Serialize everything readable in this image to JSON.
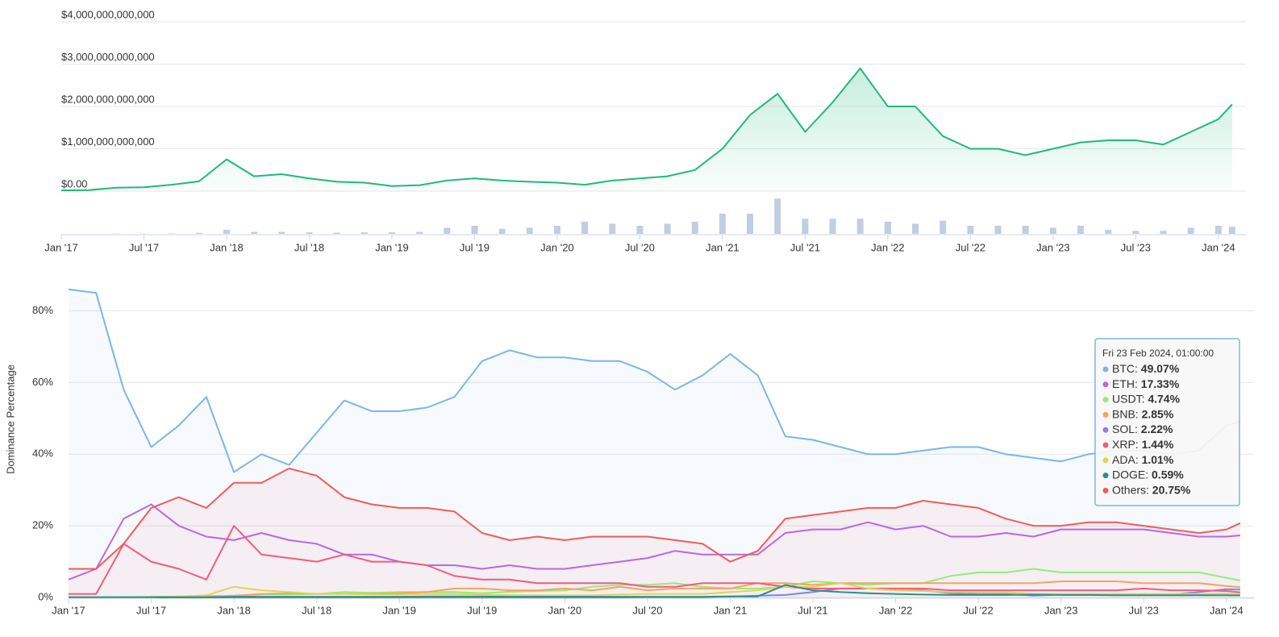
{
  "chart_data": [
    {
      "type": "line",
      "x": [
        "2017-01",
        "2017-03",
        "2017-05",
        "2017-07",
        "2017-09",
        "2017-11",
        "2018-01",
        "2018-03",
        "2018-05",
        "2018-07",
        "2018-09",
        "2018-11",
        "2019-01",
        "2019-03",
        "2019-05",
        "2019-07",
        "2019-09",
        "2019-11",
        "2020-01",
        "2020-03",
        "2020-05",
        "2020-07",
        "2020-09",
        "2020-11",
        "2021-01",
        "2021-03",
        "2021-05",
        "2021-07",
        "2021-09",
        "2021-11",
        "2022-01",
        "2022-03",
        "2022-05",
        "2022-07",
        "2022-09",
        "2022-11",
        "2023-01",
        "2023-03",
        "2023-05",
        "2023-07",
        "2023-09",
        "2023-11",
        "2024-01",
        "2024-02"
      ],
      "xlim": [
        "2017-01",
        "2024-03"
      ],
      "xticks": [
        {
          "value": "2017-01",
          "label": "Jan '17"
        },
        {
          "value": "2017-07",
          "label": "Jul '17"
        },
        {
          "value": "2018-01",
          "label": "Jan '18"
        },
        {
          "value": "2018-07",
          "label": "Jul '18"
        },
        {
          "value": "2019-01",
          "label": "Jan '19"
        },
        {
          "value": "2019-07",
          "label": "Jul '19"
        },
        {
          "value": "2020-01",
          "label": "Jan '20"
        },
        {
          "value": "2020-07",
          "label": "Jul '20"
        },
        {
          "value": "2021-01",
          "label": "Jan '21"
        },
        {
          "value": "2021-07",
          "label": "Jul '21"
        },
        {
          "value": "2022-01",
          "label": "Jan '22"
        },
        {
          "value": "2022-07",
          "label": "Jul '22"
        },
        {
          "value": "2023-01",
          "label": "Jan '23"
        },
        {
          "value": "2023-07",
          "label": "Jul '23"
        },
        {
          "value": "2024-01",
          "label": "Jan '24"
        }
      ],
      "ylim": [
        0,
        4000000000000.0
      ],
      "yticks": [
        {
          "value": 0,
          "label": "$0.00"
        },
        {
          "value": 1000000000000.0,
          "label": "$1,000,000,000,000"
        },
        {
          "value": 2000000000000.0,
          "label": "$2,000,000,000,000"
        },
        {
          "value": 3000000000000.0,
          "label": "$3,000,000,000,000"
        },
        {
          "value": 4000000000000.0,
          "label": "$4,000,000,000,000"
        }
      ],
      "y2lim": [
        0,
        400000000000.0
      ],
      "grid": true,
      "series": [
        {
          "color": "#1fb97c",
          "fill": true,
          "values": [
            18000000000.0,
            25000000000.0,
            80000000000.0,
            90000000000.0,
            150000000000.0,
            230000000000.0,
            750000000000.0,
            350000000000.0,
            400000000000.0,
            300000000000.0,
            220000000000.0,
            200000000000.0,
            120000000000.0,
            140000000000.0,
            250000000000.0,
            300000000000.0,
            250000000000.0,
            220000000000.0,
            200000000000.0,
            150000000000.0,
            250000000000.0,
            300000000000.0,
            350000000000.0,
            500000000000.0,
            1000000000000.0,
            1800000000000.0,
            2300000000000.0,
            1400000000000.0,
            2100000000000.0,
            2900000000000.0,
            2000000000000.0,
            2000000000000.0,
            1300000000000.0,
            1000000000000.0,
            1000000000000.0,
            850000000000.0,
            1000000000000.0,
            1150000000000.0,
            1200000000000.0,
            1200000000000.0,
            1100000000000.0,
            1400000000000.0,
            1700000000000.0,
            2050000000000.0
          ]
        },
        {
          "type": "bar",
          "axis": "y2",
          "color": "#c3cde0",
          "values": [
            200000000.0,
            500000000.0,
            3000000000.0,
            3000000000.0,
            4000000000.0,
            10000000000.0,
            40000000000.0,
            20000000000.0,
            20000000000.0,
            15000000000.0,
            12000000000.0,
            15000000000.0,
            15000000000.0,
            20000000000.0,
            60000000000.0,
            80000000000.0,
            50000000000.0,
            60000000000.0,
            80000000000.0,
            120000000000.0,
            100000000000.0,
            80000000000.0,
            100000000000.0,
            120000000000.0,
            200000000000.0,
            200000000000.0,
            350000000000.0,
            150000000000.0,
            150000000000.0,
            150000000000.0,
            120000000000.0,
            100000000000.0,
            130000000000.0,
            80000000000.0,
            80000000000.0,
            80000000000.0,
            60000000000.0,
            80000000000.0,
            40000000000.0,
            30000000000.0,
            30000000000.0,
            60000000000.0,
            80000000000.0,
            70000000000.0
          ]
        }
      ]
    },
    {
      "type": "line",
      "y_label": "Dominance Percentage",
      "x": [
        "2017-01",
        "2017-03",
        "2017-05",
        "2017-07",
        "2017-09",
        "2017-11",
        "2018-01",
        "2018-03",
        "2018-05",
        "2018-07",
        "2018-09",
        "2018-11",
        "2019-01",
        "2019-03",
        "2019-05",
        "2019-07",
        "2019-09",
        "2019-11",
        "2020-01",
        "2020-03",
        "2020-05",
        "2020-07",
        "2020-09",
        "2020-11",
        "2021-01",
        "2021-03",
        "2021-05",
        "2021-07",
        "2021-09",
        "2021-11",
        "2022-01",
        "2022-03",
        "2022-05",
        "2022-07",
        "2022-09",
        "2022-11",
        "2023-01",
        "2023-03",
        "2023-05",
        "2023-07",
        "2023-09",
        "2023-11",
        "2024-01",
        "2024-02"
      ],
      "xlim": [
        "2017-01",
        "2024-03"
      ],
      "xticks": [
        {
          "value": "2017-01",
          "label": "Jan '17"
        },
        {
          "value": "2017-07",
          "label": "Jul '17"
        },
        {
          "value": "2018-01",
          "label": "Jan '18"
        },
        {
          "value": "2018-07",
          "label": "Jul '18"
        },
        {
          "value": "2019-01",
          "label": "Jan '19"
        },
        {
          "value": "2019-07",
          "label": "Jul '19"
        },
        {
          "value": "2020-01",
          "label": "Jan '20"
        },
        {
          "value": "2020-07",
          "label": "Jul '20"
        },
        {
          "value": "2021-01",
          "label": "Jan '21"
        },
        {
          "value": "2021-07",
          "label": "Jul '21"
        },
        {
          "value": "2022-01",
          "label": "Jan '22"
        },
        {
          "value": "2022-07",
          "label": "Jul '22"
        },
        {
          "value": "2023-01",
          "label": "Jan '23"
        },
        {
          "value": "2023-07",
          "label": "Jul '23"
        },
        {
          "value": "2024-01",
          "label": "Jan '24"
        }
      ],
      "ylim": [
        0,
        88
      ],
      "yticks": [
        {
          "value": 0,
          "label": "0%"
        },
        {
          "value": 20,
          "label": "20%"
        },
        {
          "value": 40,
          "label": "40%"
        },
        {
          "value": 60,
          "label": "60%"
        },
        {
          "value": 80,
          "label": "80%"
        }
      ],
      "grid": true,
      "series": [
        {
          "name": "BTC",
          "color": "#7cb5ec",
          "fill": true,
          "values": [
            86,
            85,
            58,
            42,
            48,
            56,
            35,
            40,
            37,
            46,
            55,
            52,
            52,
            53,
            56,
            66,
            69,
            67,
            67,
            66,
            66,
            63,
            58,
            62,
            68,
            62,
            45,
            44,
            42,
            40,
            40,
            41,
            42,
            42,
            40,
            39,
            38,
            40,
            41,
            41,
            40,
            41,
            48,
            49.07
          ]
        },
        {
          "name": "ETH",
          "color": "#b967e8",
          "values": [
            5,
            8,
            22,
            26,
            20,
            17,
            16,
            18,
            16,
            15,
            12,
            12,
            10,
            9,
            9,
            8,
            9,
            8,
            8,
            9,
            10,
            11,
            13,
            12,
            12,
            12,
            18,
            19,
            19,
            21,
            19,
            20,
            17,
            17,
            18,
            17,
            19,
            19,
            19,
            19,
            18,
            17,
            17,
            17.33
          ]
        },
        {
          "name": "USDT",
          "color": "#90ed7d",
          "values": [
            0,
            0,
            0.1,
            0.2,
            0.3,
            0.5,
            0.3,
            0.8,
            0.8,
            1,
            1.5,
            1.3,
            1.5,
            1.5,
            1.5,
            1.2,
            1.6,
            1.8,
            2,
            3,
            3.5,
            3.5,
            4,
            3,
            2.5,
            2.5,
            3,
            4.5,
            4,
            3.5,
            4,
            4,
            6,
            7,
            7,
            8,
            7,
            7,
            7,
            7,
            7,
            7,
            5.5,
            4.74
          ]
        },
        {
          "name": "BNB",
          "color": "#f7a35c",
          "values": [
            0,
            0,
            0,
            0.1,
            0.1,
            0.3,
            0.5,
            1,
            1.2,
            1,
            1,
            1,
            1.2,
            1.5,
            2.5,
            2.5,
            2,
            2,
            2.5,
            2,
            3,
            2,
            2.5,
            2.5,
            2.5,
            4,
            4,
            3.5,
            4,
            4,
            4,
            4,
            4,
            4,
            4,
            4,
            4.5,
            4.5,
            4.5,
            4,
            4,
            4,
            3.2,
            2.85
          ]
        },
        {
          "name": "SOL",
          "color": "#8085e9",
          "values": [
            0,
            0,
            0,
            0,
            0,
            0,
            0,
            0,
            0,
            0,
            0,
            0,
            0,
            0,
            0,
            0,
            0,
            0,
            0,
            0,
            0,
            0.1,
            0.1,
            0.1,
            0.3,
            0.5,
            0.7,
            1.5,
            2.5,
            2.5,
            2,
            2,
            1.2,
            1,
            1,
            0.5,
            0.8,
            0.8,
            0.7,
            0.9,
            0.8,
            1.5,
            2.3,
            2.22
          ]
        },
        {
          "name": "XRP",
          "color": "#f15c80",
          "values": [
            1,
            1,
            15,
            10,
            8,
            5,
            20,
            12,
            11,
            10,
            12,
            10,
            10,
            9,
            6,
            5,
            5,
            4,
            4,
            4,
            4,
            3,
            3,
            4,
            4,
            4,
            3,
            2.5,
            2.5,
            2.5,
            2.5,
            2.5,
            2,
            2,
            2,
            2,
            2,
            2,
            2,
            2.5,
            2,
            2,
            1.8,
            1.44
          ]
        },
        {
          "name": "ADA",
          "color": "#e4d354",
          "values": [
            0,
            0,
            0,
            0,
            0.3,
            0.6,
            3,
            2,
            1.5,
            1,
            1,
            0.8,
            0.8,
            1,
            1,
            0.8,
            0.6,
            0.6,
            0.6,
            0.6,
            0.8,
            1,
            1,
            1,
            1.5,
            2,
            3,
            3,
            4,
            2.5,
            2,
            1.8,
            1.5,
            1.5,
            1.5,
            1,
            1,
            1,
            1,
            1,
            1,
            1,
            1.1,
            1.01
          ]
        },
        {
          "name": "DOGE",
          "color": "#2b908f",
          "values": [
            0.1,
            0.1,
            0.1,
            0.1,
            0.1,
            0.1,
            0.2,
            0.2,
            0.2,
            0.2,
            0.2,
            0.2,
            0.2,
            0.3,
            0.3,
            0.3,
            0.2,
            0.2,
            0.2,
            0.2,
            0.2,
            0.2,
            0.2,
            0.2,
            0.3,
            0.3,
            3.5,
            2,
            1.5,
            1.2,
            1,
            0.8,
            0.7,
            0.7,
            0.7,
            0.8,
            0.7,
            0.7,
            0.6,
            0.6,
            0.6,
            0.6,
            0.6,
            0.59
          ]
        },
        {
          "name": "Others",
          "color": "#f45b5b",
          "fill": true,
          "values": [
            8,
            8,
            15,
            25,
            28,
            25,
            32,
            32,
            36,
            34,
            28,
            26,
            25,
            25,
            24,
            18,
            16,
            17,
            16,
            17,
            17,
            17,
            16,
            15,
            10,
            13,
            22,
            23,
            24,
            25,
            25,
            27,
            26,
            25,
            22,
            20,
            20,
            21,
            21,
            20,
            19,
            18,
            19,
            20.75
          ]
        }
      ],
      "tooltip": {
        "title": "Fri 23 Feb 2024, 01:00:00",
        "value_labels": [
          "49.07%",
          "17.33%",
          "4.74%",
          "2.85%",
          "2.22%",
          "1.44%",
          "1.01%",
          "0.59%",
          "20.75%"
        ]
      }
    }
  ]
}
